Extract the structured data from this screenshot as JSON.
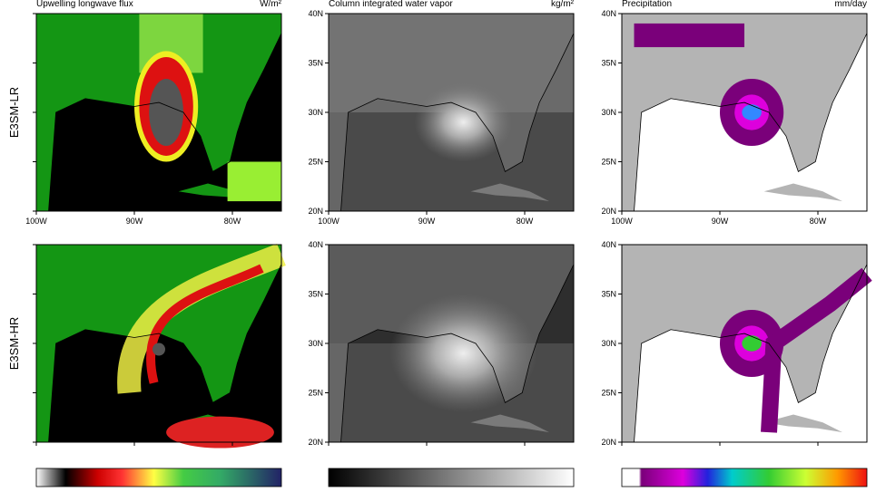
{
  "columns": [
    {
      "title": "Upwelling longwave flux",
      "units": "W/m²"
    },
    {
      "title": "Column integrated water vapor",
      "units": "kg/m²"
    },
    {
      "title": "Precipitation",
      "units": "mm/day"
    }
  ],
  "rows": [
    "E3SM-LR",
    "E3SM-HR"
  ],
  "x_ticks": [
    "100W",
    "90W",
    "80W"
  ],
  "y_ticks": [
    "20N",
    "25N",
    "30N",
    "35N",
    "40N"
  ]
}
